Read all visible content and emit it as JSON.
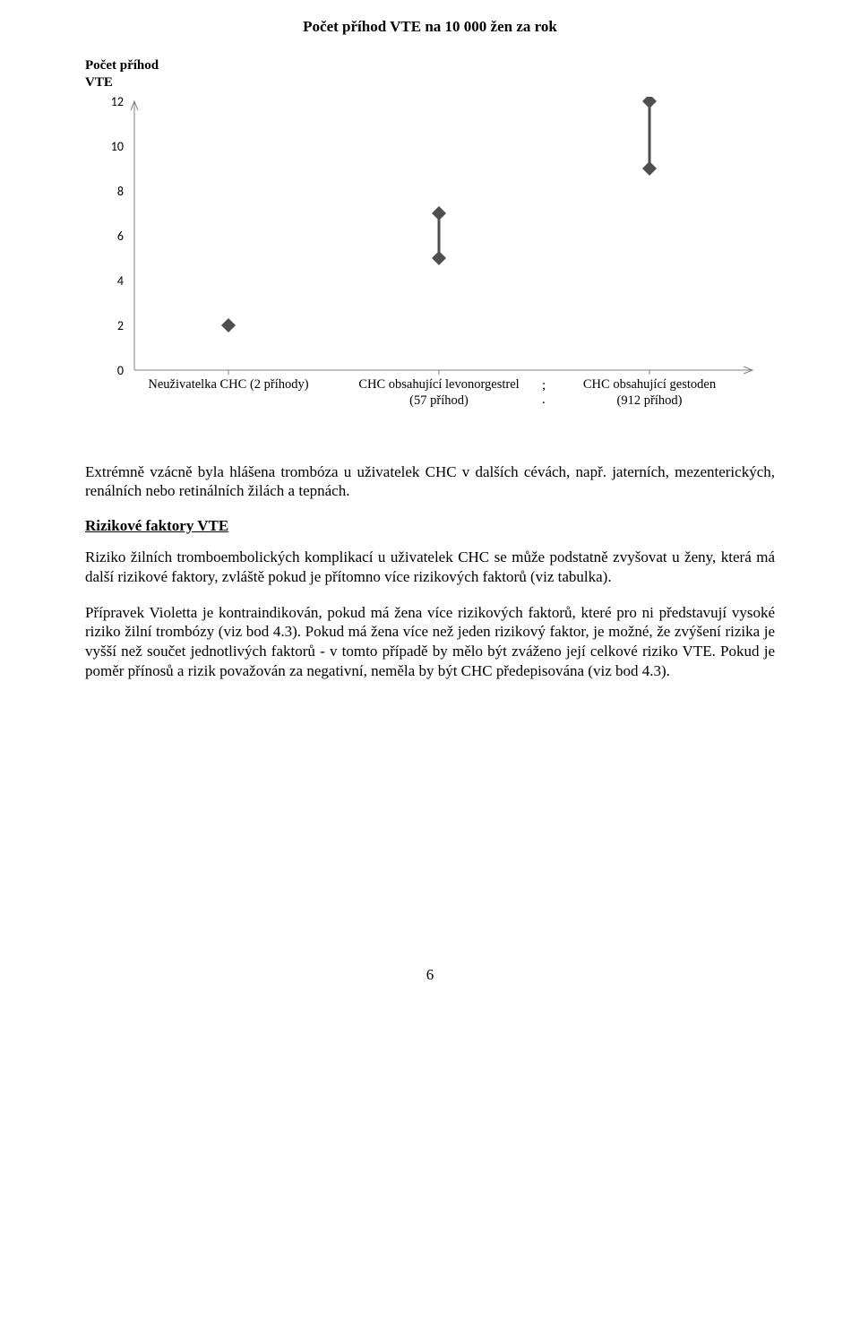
{
  "chart": {
    "type": "range-dot",
    "title": "Počet příhod VTE na 10 000 žen za rok",
    "y_axis_title": "Počet příhod\nVTE",
    "y_ticks": [
      0,
      2,
      4,
      6,
      8,
      10,
      12
    ],
    "ylim": [
      0,
      12
    ],
    "tick_fontsize": 14,
    "axis_color": "#7f7f7f",
    "marker_fill": "#4f4f4f",
    "line_stroke": "#4f4f4f",
    "background_color": "#ffffff",
    "categories": [
      {
        "label_lines": [
          "Neuživatelka CHC (2 příhody)"
        ],
        "low": 2,
        "high": 2
      },
      {
        "label_lines": [
          "CHC obsahující levonorgestrel",
          "(57 příhod)"
        ],
        "low": 5,
        "high": 7
      },
      {
        "label_lines": [
          "CHC obsahující gestoden",
          "(912 příhod)"
        ],
        "low": 9,
        "high": 12
      }
    ],
    "separator_after_cat2": ";\n."
  },
  "paragraph_intro": "Extrémně vzácně byla hlášena trombóza u uživatelek CHC v dalších cévách, např. jaterních, mezenterických, renálních nebo retinálních žilách a tepnách.",
  "section_heading": "Rizikové faktory VTE",
  "para_risk_1": "Riziko žilních tromboembolických komplikací u uživatelek CHC se může podstatně zvyšovat u ženy, která má další rizikové faktory, zvláště pokud je přítomno více rizikových faktorů (viz tabulka).",
  "para_risk_2": "Přípravek Violetta je kontraindikován, pokud má žena více rizikových faktorů, které pro ni představují vysoké riziko žilní trombózy (viz bod 4.3). Pokud má žena více než jeden rizikový faktor, je možné, že zvýšení rizika je vyšší než součet jednotlivých faktorů - v tomto případě by mělo být zváženo její celkové riziko VTE. Pokud je poměr přínosů a rizik považován za negativní, neměla by být CHC předepisována (viz bod 4.3).",
  "page_number": "6"
}
